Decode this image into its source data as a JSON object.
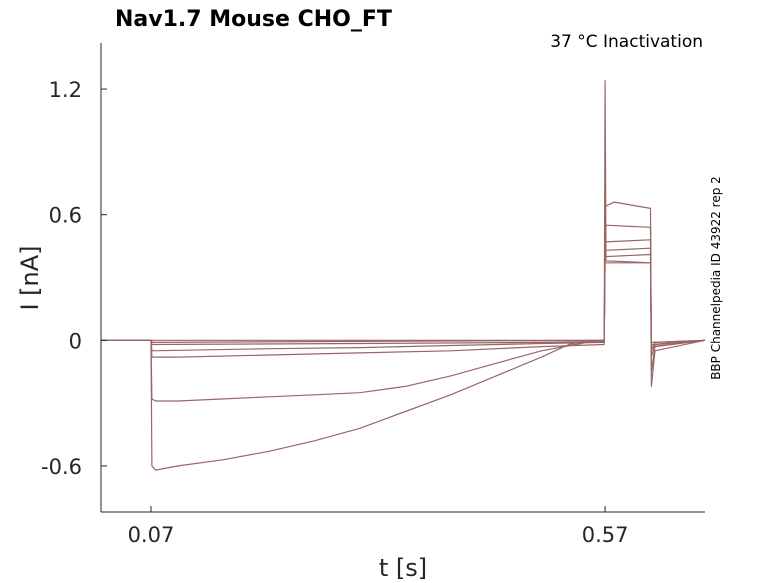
{
  "chart_data": {
    "type": "line",
    "title": "Nav1.7  Mouse  CHO_FT",
    "subtitle": "37 °C  Inactivation",
    "side_label": "BBP Channelpedia ID 43922 rep 2",
    "xlabel": "t [s]",
    "ylabel": "I [nA]",
    "xlim": [
      0.015,
      0.68
    ],
    "ylim": [
      -0.82,
      1.42
    ],
    "xticks": [
      0.07,
      0.57
    ],
    "xtick_labels": [
      "0.07",
      "0.57"
    ],
    "yticks": [
      -0.6,
      0,
      0.6,
      1.2
    ],
    "ytick_labels": [
      "-0.6",
      "0",
      "0.6",
      "1.2"
    ],
    "color": "#996666",
    "series": [
      {
        "name": "trace 1",
        "points": [
          [
            0.015,
            0
          ],
          [
            0.07,
            0
          ],
          [
            0.071,
            -0.6
          ],
          [
            0.075,
            -0.62
          ],
          [
            0.1,
            -0.6
          ],
          [
            0.15,
            -0.57
          ],
          [
            0.2,
            -0.53
          ],
          [
            0.25,
            -0.48
          ],
          [
            0.3,
            -0.42
          ],
          [
            0.35,
            -0.34
          ],
          [
            0.4,
            -0.26
          ],
          [
            0.45,
            -0.17
          ],
          [
            0.5,
            -0.08
          ],
          [
            0.53,
            -0.02
          ],
          [
            0.55,
            0.0
          ],
          [
            0.569,
            0.0
          ],
          [
            0.57,
            1.24
          ],
          [
            0.571,
            0.38
          ],
          [
            0.62,
            0.37
          ],
          [
            0.621,
            -0.22
          ],
          [
            0.625,
            -0.05
          ],
          [
            0.68,
            0
          ]
        ]
      },
      {
        "name": "trace 2",
        "points": [
          [
            0.015,
            0
          ],
          [
            0.07,
            0
          ],
          [
            0.071,
            -0.28
          ],
          [
            0.075,
            -0.29
          ],
          [
            0.1,
            -0.29
          ],
          [
            0.15,
            -0.28
          ],
          [
            0.2,
            -0.27
          ],
          [
            0.25,
            -0.26
          ],
          [
            0.3,
            -0.25
          ],
          [
            0.35,
            -0.22
          ],
          [
            0.4,
            -0.17
          ],
          [
            0.45,
            -0.11
          ],
          [
            0.5,
            -0.05
          ],
          [
            0.55,
            -0.01
          ],
          [
            0.569,
            0.0
          ],
          [
            0.57,
            0.64
          ],
          [
            0.58,
            0.66
          ],
          [
            0.62,
            0.63
          ],
          [
            0.621,
            -0.15
          ],
          [
            0.625,
            -0.03
          ],
          [
            0.68,
            0
          ]
        ]
      },
      {
        "name": "trace 3",
        "points": [
          [
            0.015,
            0
          ],
          [
            0.07,
            0
          ],
          [
            0.071,
            -0.08
          ],
          [
            0.1,
            -0.08
          ],
          [
            0.2,
            -0.07
          ],
          [
            0.3,
            -0.06
          ],
          [
            0.4,
            -0.05
          ],
          [
            0.5,
            -0.03
          ],
          [
            0.569,
            -0.02
          ],
          [
            0.57,
            0.55
          ],
          [
            0.62,
            0.54
          ],
          [
            0.621,
            -0.08
          ],
          [
            0.625,
            -0.02
          ],
          [
            0.68,
            0
          ]
        ]
      },
      {
        "name": "trace 4",
        "points": [
          [
            0.015,
            0
          ],
          [
            0.07,
            0
          ],
          [
            0.071,
            -0.05
          ],
          [
            0.2,
            -0.04
          ],
          [
            0.3,
            -0.035
          ],
          [
            0.4,
            -0.025
          ],
          [
            0.5,
            -0.015
          ],
          [
            0.569,
            -0.01
          ],
          [
            0.57,
            0.47
          ],
          [
            0.62,
            0.48
          ],
          [
            0.621,
            -0.05
          ],
          [
            0.625,
            -0.01
          ],
          [
            0.68,
            0
          ]
        ]
      },
      {
        "name": "trace 5",
        "points": [
          [
            0.015,
            0
          ],
          [
            0.07,
            0
          ],
          [
            0.071,
            -0.02
          ],
          [
            0.3,
            -0.015
          ],
          [
            0.5,
            -0.01
          ],
          [
            0.569,
            -0.005
          ],
          [
            0.57,
            0.43
          ],
          [
            0.62,
            0.44
          ],
          [
            0.621,
            -0.03
          ],
          [
            0.68,
            0
          ]
        ]
      },
      {
        "name": "trace 6",
        "points": [
          [
            0.015,
            0
          ],
          [
            0.07,
            0
          ],
          [
            0.071,
            -0.01
          ],
          [
            0.3,
            -0.005
          ],
          [
            0.569,
            0.0
          ],
          [
            0.57,
            0.4
          ],
          [
            0.62,
            0.41
          ],
          [
            0.621,
            -0.02
          ],
          [
            0.68,
            0
          ]
        ]
      },
      {
        "name": "trace 7",
        "points": [
          [
            0.015,
            0
          ],
          [
            0.07,
            0
          ],
          [
            0.071,
            0.0
          ],
          [
            0.569,
            0.0
          ],
          [
            0.57,
            0.37
          ],
          [
            0.62,
            0.37
          ],
          [
            0.621,
            -0.01
          ],
          [
            0.68,
            0
          ]
        ]
      }
    ]
  }
}
